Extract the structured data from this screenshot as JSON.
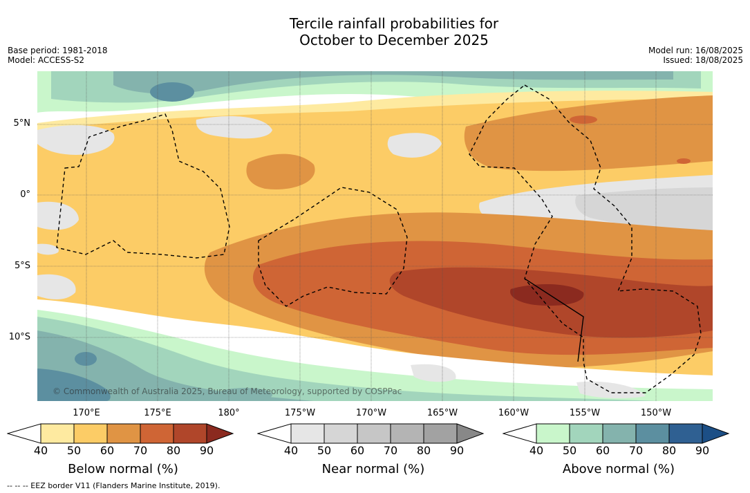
{
  "title_line1": "Tercile rainfall probabilities for",
  "title_line2": "October to December 2025",
  "meta_left": [
    "Base period: 1981-2018",
    "Model: ACCESS-S2"
  ],
  "meta_right": [
    "Model run: 16/08/2025",
    "Issued: 18/08/2025"
  ],
  "lat_labels": [
    "5°N",
    "0°",
    "5°S",
    "10°S"
  ],
  "lon_labels": [
    "170°E",
    "175°E",
    "180°",
    "175°W",
    "170°W",
    "165°W",
    "160°W",
    "155°W",
    "150°W"
  ],
  "copyright": "© Commonwealth of Australia 2025, Bureau of Meteorology, supported by COSPPac",
  "footer": "--  --  -- EEZ border V11 (Flanders Marine Institute, 2019).",
  "colorbars": [
    {
      "label": "Below normal (%)",
      "ticks": [
        "40",
        "50",
        "60",
        "70",
        "80",
        "90"
      ],
      "colors": [
        "#ffffff",
        "#feeaa0",
        "#fccc66",
        "#e09444",
        "#cf6535",
        "#b0462a",
        "#8b2a1f"
      ]
    },
    {
      "label": "Near normal (%)",
      "ticks": [
        "40",
        "50",
        "60",
        "70",
        "80",
        "90"
      ],
      "colors": [
        "#ffffff",
        "#e6e6e6",
        "#d6d6d6",
        "#c6c6c6",
        "#b4b4b4",
        "#a2a2a2",
        "#888888"
      ]
    },
    {
      "label": "Above normal (%)",
      "ticks": [
        "40",
        "50",
        "60",
        "70",
        "80",
        "90"
      ],
      "colors": [
        "#ffffff",
        "#c9f6cb",
        "#a2d5bc",
        "#84b3ad",
        "#5c8fa0",
        "#2f6092",
        "#1c4f86"
      ]
    }
  ]
}
